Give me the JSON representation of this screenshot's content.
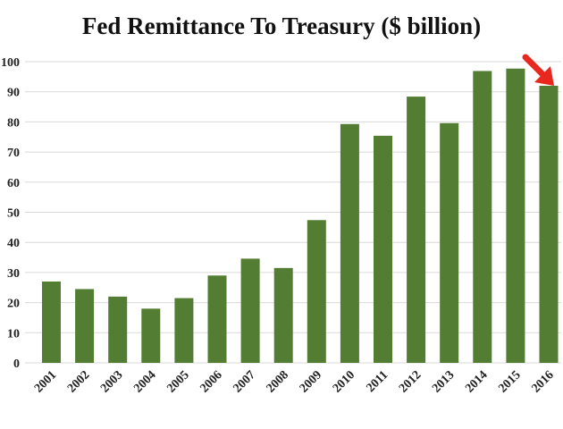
{
  "chart_data": {
    "type": "bar",
    "title": "Fed Remittance To Treasury ($ billion)",
    "xlabel": "",
    "ylabel": "",
    "categories": [
      "2001",
      "2002",
      "2003",
      "2004",
      "2005",
      "2006",
      "2007",
      "2008",
      "2009",
      "2010",
      "2011",
      "2012",
      "2013",
      "2014",
      "2015",
      "2016"
    ],
    "values": [
      27,
      24.5,
      22,
      18,
      21.5,
      29,
      34.6,
      31.5,
      47.4,
      79.3,
      75.4,
      88.4,
      79.6,
      96.9,
      97.7,
      92
    ],
    "ylim": [
      0,
      100
    ],
    "yticks": [
      0,
      10,
      20,
      30,
      40,
      50,
      60,
      70,
      80,
      90,
      100
    ],
    "grid": true,
    "legend": "none",
    "colors": {
      "bar": "#527d33",
      "grid": "#d9d9d9",
      "arrow": "#e8281f"
    },
    "annotations": [
      {
        "type": "arrow",
        "target_category": "2016"
      }
    ]
  }
}
